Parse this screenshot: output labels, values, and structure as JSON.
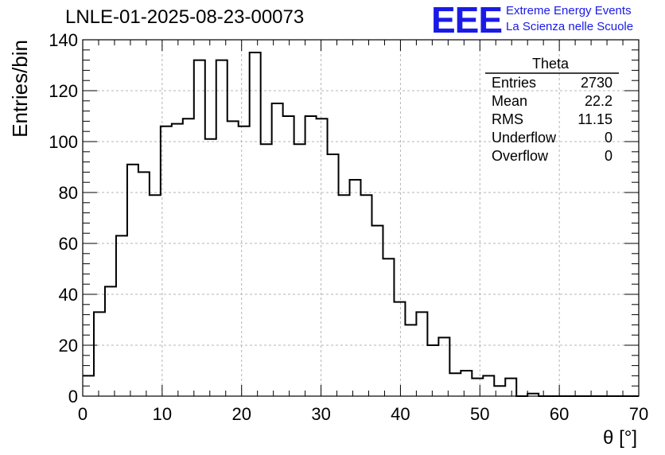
{
  "page_title": "LNLE-01-2025-08-23-00073",
  "logo": {
    "mark": "EEE",
    "line1": "Extreme Energy Events",
    "line2": "La Scienza nelle Scuole",
    "color": "#1a1ae6"
  },
  "stats_box": {
    "title": "Theta",
    "rows": [
      {
        "label": "Entries",
        "value": "2730"
      },
      {
        "label": "Mean",
        "value": "22.2"
      },
      {
        "label": "RMS",
        "value": "11.15"
      },
      {
        "label": "Underflow",
        "value": "0"
      },
      {
        "label": "Overflow",
        "value": "0"
      }
    ]
  },
  "chart_data": {
    "type": "bar",
    "histogram": true,
    "title": "LNLE-01-2025-08-23-00073",
    "xlabel": "θ [°]",
    "ylabel": "Entries/bin",
    "xlim": [
      0,
      70
    ],
    "ylim": [
      0,
      140
    ],
    "xticks": [
      0,
      10,
      20,
      30,
      40,
      50,
      60,
      70
    ],
    "yticks": [
      0,
      20,
      40,
      60,
      80,
      100,
      120,
      140
    ],
    "grid": true,
    "bin_width": 1.4,
    "bin_edges_start": 0,
    "values": [
      8,
      33,
      43,
      63,
      91,
      88,
      79,
      106,
      107,
      109,
      132,
      101,
      132,
      108,
      106,
      135,
      99,
      115,
      110,
      99,
      110,
      109,
      95,
      79,
      85,
      79,
      67,
      54,
      37,
      28,
      33,
      20,
      23,
      9,
      10,
      7,
      8,
      4,
      7,
      0,
      1,
      0,
      0,
      0,
      0,
      0,
      0,
      0,
      0,
      0
    ],
    "line_color": "#000000"
  }
}
